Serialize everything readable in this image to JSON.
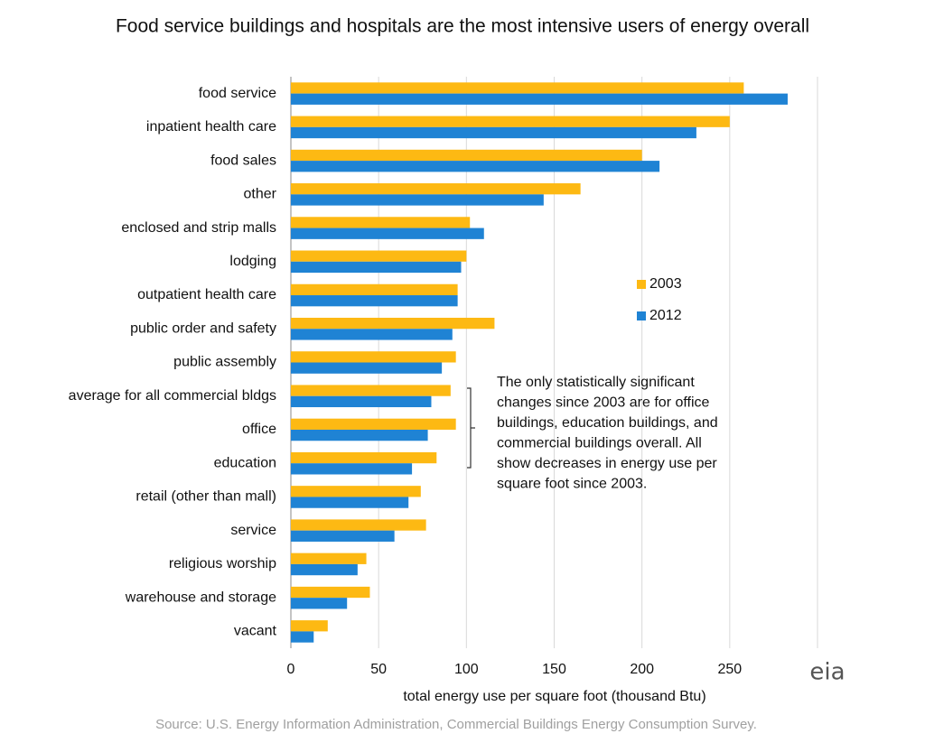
{
  "chart_data": {
    "type": "hbar",
    "title": "Food service buildings and hospitals are the most intensive users of energy overall",
    "x_label": "total energy use per square foot (thousand Btu)",
    "source": "Source: U.S. Energy Information Administration, Commercial Buildings Energy Consumption Survey.",
    "logo": "eia",
    "annotation": [
      "The only statistically significant",
      "changes since 2003 are for office",
      "buildings, education buildings, and",
      "commercial buildings overall. All",
      "show decreases in energy use per",
      "square foot since 2003."
    ],
    "categories": [
      "food service",
      "inpatient health care",
      "food sales",
      "other",
      "enclosed and strip malls",
      "lodging",
      "outpatient health care",
      "public order and safety",
      "public assembly",
      "average for all commercial bldgs",
      "office",
      "education",
      "retail (other than mall)",
      "service",
      "religious worship",
      "warehouse and storage",
      "vacant"
    ],
    "series": [
      {
        "name": "2003",
        "color": "#fdb913",
        "values": [
          258,
          250,
          200,
          165,
          102,
          100,
          95,
          116,
          94,
          91,
          94,
          83,
          74,
          77,
          43,
          45,
          21
        ]
      },
      {
        "name": "2012",
        "color": "#1f83d4",
        "values": [
          283,
          231,
          210,
          144,
          110,
          97,
          95,
          92,
          86,
          80,
          78,
          69,
          67,
          59,
          38,
          32,
          13
        ]
      }
    ],
    "xlim": [
      0,
      300
    ],
    "xticks": [
      0,
      50,
      100,
      150,
      200,
      250
    ],
    "grid": true
  }
}
